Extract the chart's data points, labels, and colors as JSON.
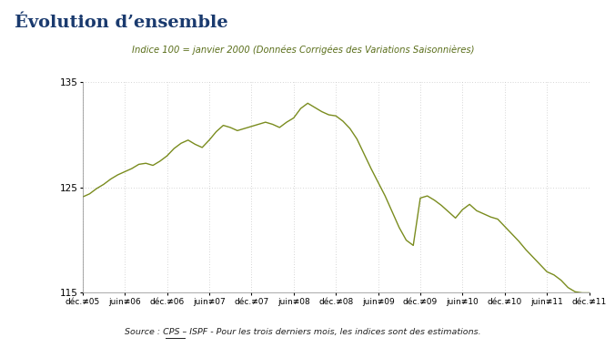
{
  "title": "Évolution d’ensemble",
  "subtitle": "Indice 100 = janvier 2000 (Données Corrigées des Variations Saisonnières)",
  "source_label": "Source",
  "source_rest": " : CPS – ISPF - Pour les trois derniers mois, les indices sont des estimations.",
  "ylim": [
    115,
    135
  ],
  "yticks": [
    115,
    125,
    135
  ],
  "line_color": "#7a8c1e",
  "background_color": "#ffffff",
  "xtick_labels": [
    "déc.≢05",
    "juin≢06",
    "déc.≢06",
    "juin≢07",
    "déc.≢07",
    "juin≢08",
    "déc.≢08",
    "juin≢09",
    "déc.≢09",
    "juin≢10",
    "déc.≢10",
    "juin≢11",
    "déc.≢11"
  ],
  "x_positions": [
    0,
    6,
    12,
    18,
    24,
    30,
    36,
    42,
    48,
    54,
    60,
    66,
    72
  ],
  "data_x": [
    0,
    1,
    2,
    3,
    4,
    5,
    6,
    7,
    8,
    9,
    10,
    11,
    12,
    13,
    14,
    15,
    16,
    17,
    18,
    19,
    20,
    21,
    22,
    23,
    24,
    25,
    26,
    27,
    28,
    29,
    30,
    31,
    32,
    33,
    34,
    35,
    36,
    37,
    38,
    39,
    40,
    41,
    42,
    43,
    44,
    45,
    46,
    47,
    48,
    49,
    50,
    51,
    52,
    53,
    54,
    55,
    56,
    57,
    58,
    59,
    60,
    61,
    62,
    63,
    64,
    65,
    66,
    67,
    68,
    69,
    70,
    71,
    72
  ],
  "data_y": [
    124.1,
    124.4,
    124.9,
    125.3,
    125.8,
    126.2,
    126.5,
    126.8,
    127.2,
    127.3,
    127.1,
    127.5,
    128.0,
    128.7,
    129.2,
    129.5,
    129.1,
    128.8,
    129.5,
    130.3,
    130.9,
    130.7,
    130.4,
    130.6,
    130.8,
    131.0,
    131.2,
    131.0,
    130.7,
    131.2,
    131.6,
    132.5,
    133.0,
    132.6,
    132.2,
    131.9,
    131.8,
    131.3,
    130.6,
    129.6,
    128.2,
    126.8,
    125.5,
    124.2,
    122.7,
    121.2,
    120.0,
    119.5,
    124.0,
    124.2,
    123.8,
    123.3,
    122.7,
    122.1,
    122.9,
    123.4,
    122.8,
    122.5,
    122.2,
    122.0,
    121.3,
    120.6,
    119.9,
    119.1,
    118.4,
    117.7,
    117.0,
    116.7,
    116.2,
    115.5,
    115.1,
    115.0,
    115.0
  ]
}
